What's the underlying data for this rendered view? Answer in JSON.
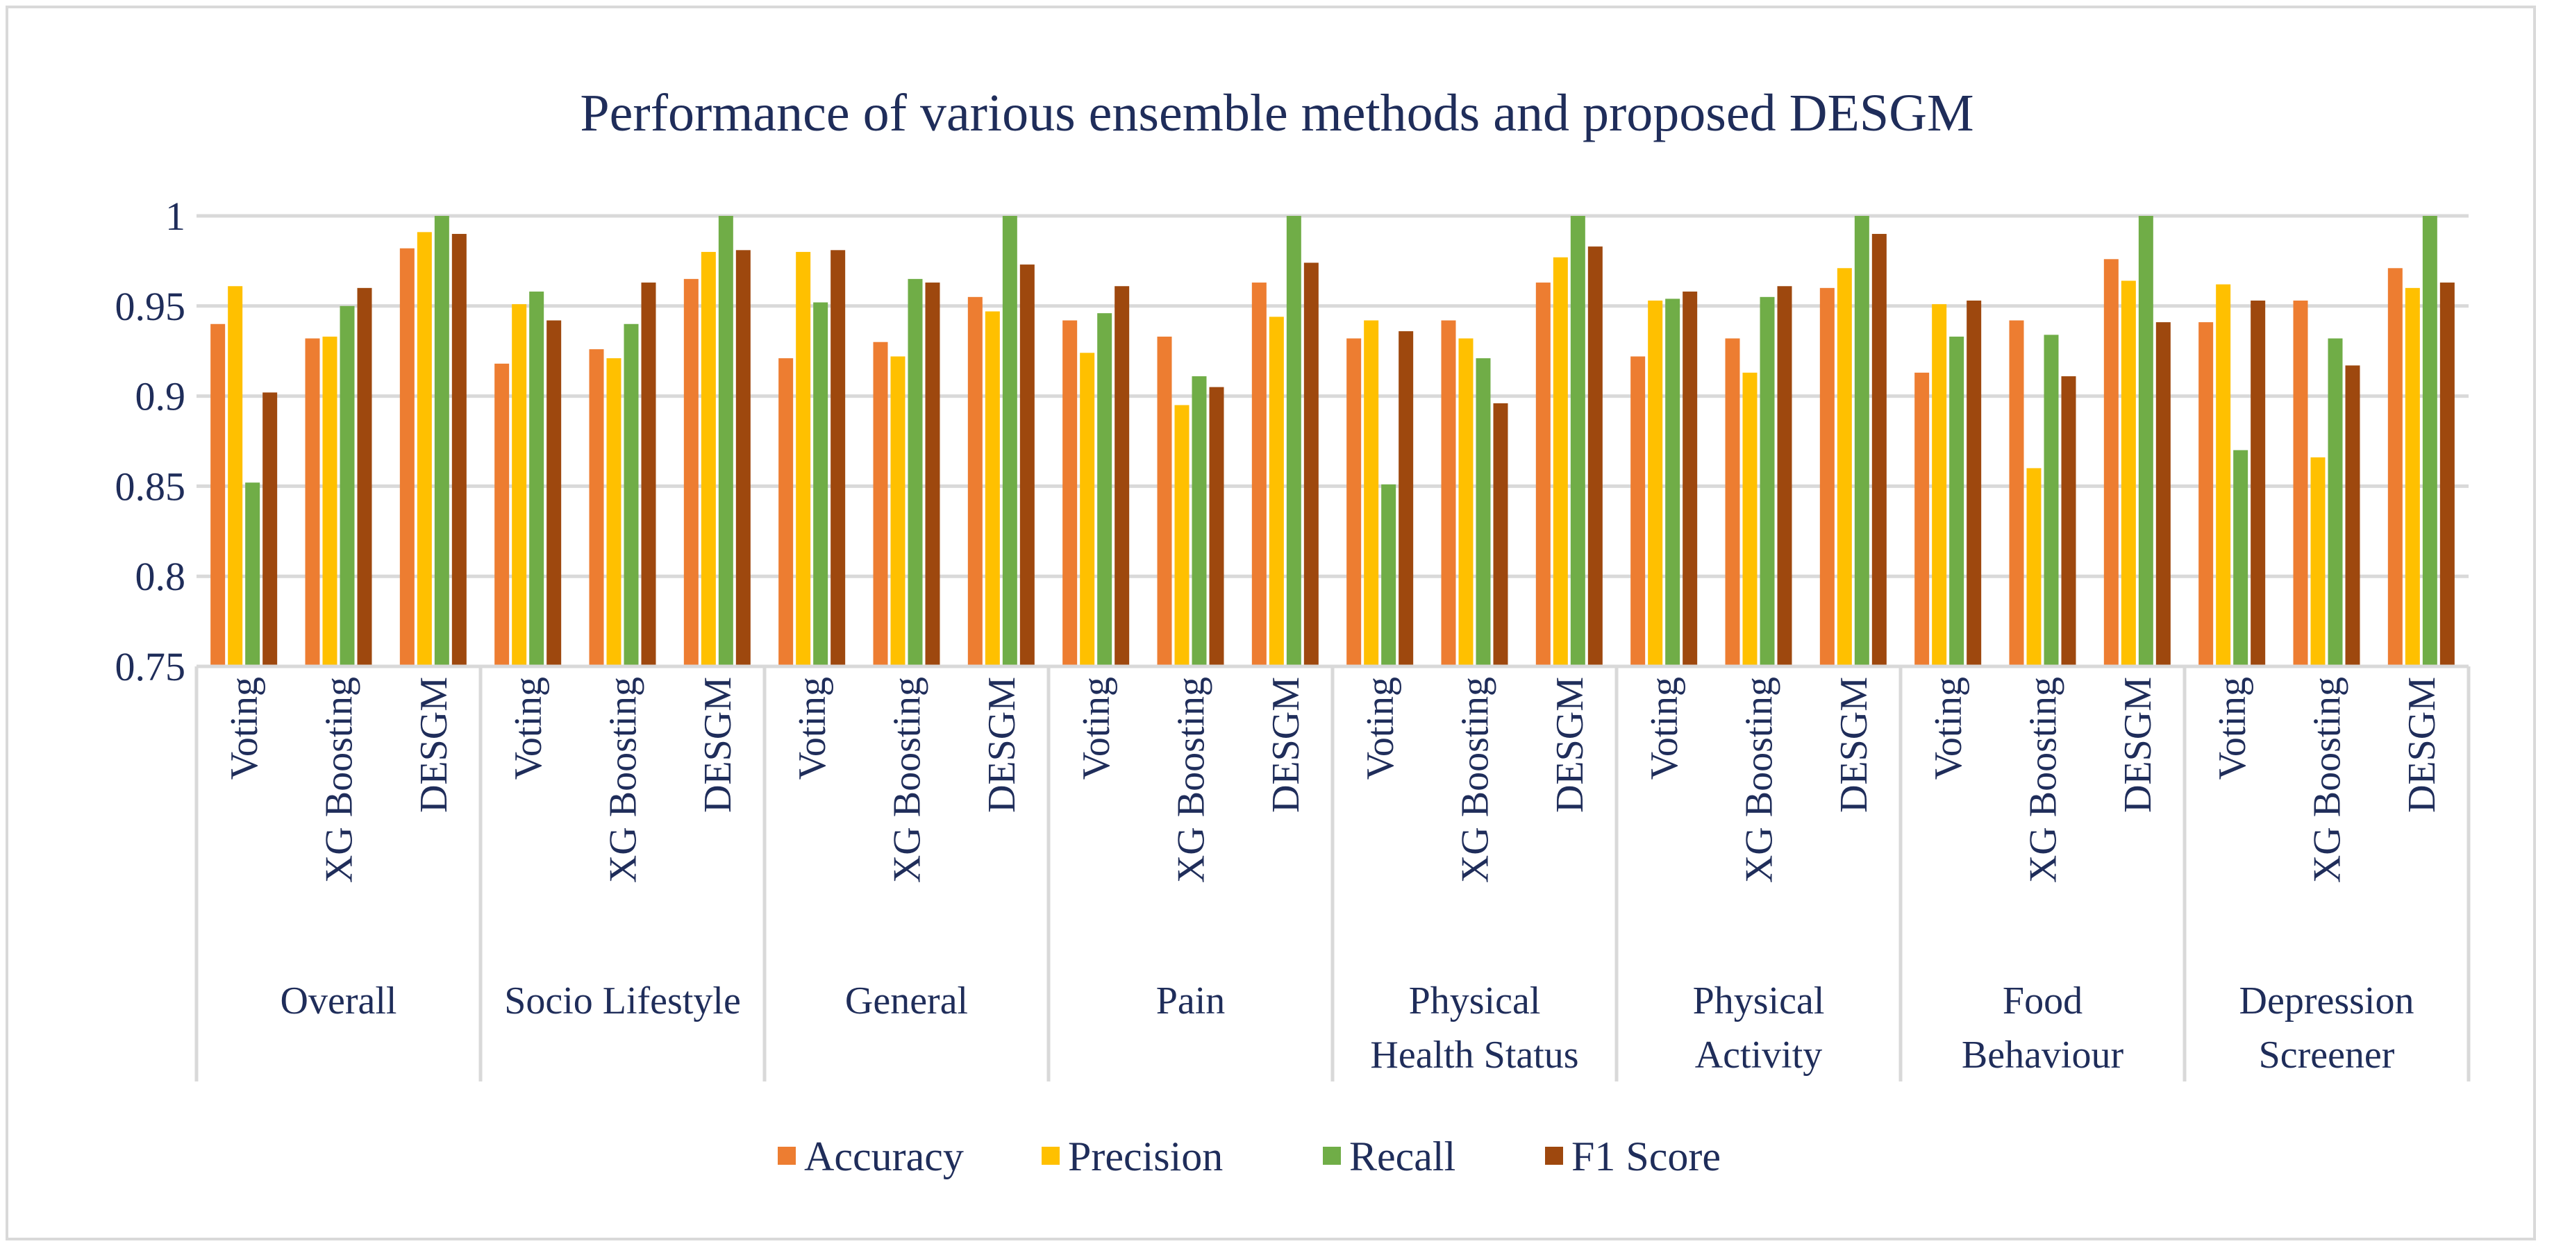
{
  "chart_data": {
    "type": "bar",
    "title": "Performance of various ensemble methods and proposed DESGM",
    "xlabel": "",
    "ylabel": "",
    "ylim": [
      0.75,
      1
    ],
    "yticks": [
      "0.75",
      "0.8",
      "0.85",
      "0.9",
      "0.95",
      "1"
    ],
    "grid": true,
    "legend_position": "bottom",
    "groups": [
      "Overall",
      "Socio Lifestyle",
      "General",
      "Pain",
      "Physical Health Status",
      "Physical Activity",
      "Food Behaviour",
      "Depression Screener"
    ],
    "group_label_lines": [
      [
        "Overall"
      ],
      [
        "Socio Lifestyle"
      ],
      [
        "General"
      ],
      [
        "Pain"
      ],
      [
        "Physical",
        "Health Status"
      ],
      [
        "Physical",
        "Activity"
      ],
      [
        "Food",
        "Behaviour"
      ],
      [
        "Depression",
        "Screener"
      ]
    ],
    "methods": [
      "Voting",
      "XG Boosting",
      "DESGM"
    ],
    "series": [
      {
        "name": "Accuracy",
        "color": "#ED7D31",
        "values": [
          0.94,
          0.932,
          0.982,
          0.918,
          0.926,
          0.965,
          0.921,
          0.93,
          0.955,
          0.942,
          0.933,
          0.963,
          0.932,
          0.942,
          0.963,
          0.922,
          0.932,
          0.96,
          0.913,
          0.942,
          0.976,
          0.941,
          0.953,
          0.971
        ]
      },
      {
        "name": "Precision",
        "color": "#FFC000",
        "values": [
          0.961,
          0.933,
          0.991,
          0.951,
          0.921,
          0.98,
          0.98,
          0.922,
          0.947,
          0.924,
          0.895,
          0.944,
          0.942,
          0.932,
          0.977,
          0.953,
          0.913,
          0.971,
          0.951,
          0.86,
          0.964,
          0.962,
          0.866,
          0.96
        ]
      },
      {
        "name": "Recall",
        "color": "#70AD47",
        "values": [
          0.852,
          0.95,
          1.0,
          0.958,
          0.94,
          1.0,
          0.952,
          0.965,
          1.0,
          0.946,
          0.911,
          1.0,
          0.851,
          0.921,
          1.0,
          0.954,
          0.955,
          1.0,
          0.933,
          0.934,
          1.0,
          0.87,
          0.932,
          1.0
        ]
      },
      {
        "name": "F1 Score",
        "color": "#9E480E",
        "values": [
          0.902,
          0.96,
          0.99,
          0.942,
          0.963,
          0.981,
          0.981,
          0.963,
          0.973,
          0.961,
          0.905,
          0.974,
          0.936,
          0.896,
          0.983,
          0.958,
          0.961,
          0.99,
          0.953,
          0.911,
          0.941,
          0.953,
          0.917,
          0.963
        ]
      }
    ]
  }
}
